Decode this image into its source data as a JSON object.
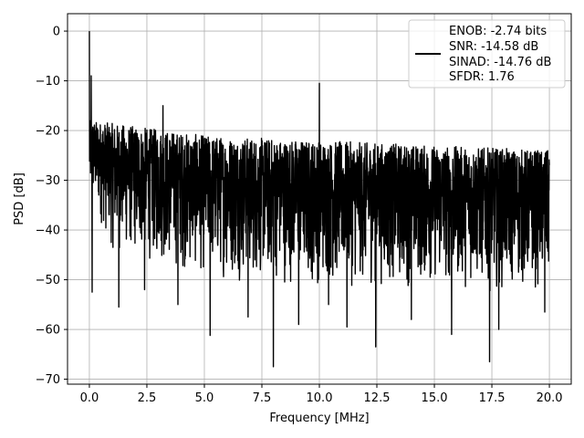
{
  "chart_data": {
    "type": "line",
    "xlabel": "Frequency [MHz]",
    "ylabel": "PSD [dB]",
    "xlim": [
      -0.95,
      20.95
    ],
    "ylim": [
      -71,
      3.5
    ],
    "xticks": [
      0.0,
      2.5,
      5.0,
      7.5,
      10.0,
      12.5,
      15.0,
      17.5,
      20.0
    ],
    "xtick_labels": [
      "0.0",
      "2.5",
      "5.0",
      "7.5",
      "10.0",
      "12.5",
      "15.0",
      "17.5",
      "20.0"
    ],
    "yticks": [
      0,
      -10,
      -20,
      -30,
      -40,
      -50,
      -60,
      -70
    ],
    "ytick_labels": [
      "0",
      "−10",
      "−20",
      "−30",
      "−40",
      "−50",
      "−60",
      "−70"
    ],
    "grid": true,
    "legend_position": "top-right",
    "legend": {
      "lines": [
        "ENOB: -2.74 bits",
        "SNR: -14.58 dB",
        "SINAD: -14.76 dB",
        "SFDR: 1.76"
      ]
    },
    "series": [
      {
        "color": "#000000",
        "x_range": [
          0,
          20
        ],
        "peaks": [
          {
            "x": 0.0,
            "y": 0.0
          },
          {
            "x": 0.08,
            "y": -9
          },
          {
            "x": 3.2,
            "y": -15
          },
          {
            "x": 10.0,
            "y": -10.5
          }
        ],
        "upper_envelope": [
          [
            0.1,
            -18
          ],
          [
            5,
            -21
          ],
          [
            10,
            -22
          ],
          [
            15,
            -23
          ],
          [
            20,
            -24
          ]
        ],
        "lower_envelope": [
          [
            0.1,
            -35
          ],
          [
            1,
            -45
          ],
          [
            5,
            -50
          ],
          [
            10,
            -52
          ],
          [
            15,
            -52
          ],
          [
            20,
            -53
          ]
        ],
        "dips": [
          {
            "x": 0.12,
            "y": -52.5
          },
          {
            "x": 1.28,
            "y": -55.5
          },
          {
            "x": 2.4,
            "y": -52
          },
          {
            "x": 3.85,
            "y": -55
          },
          {
            "x": 5.25,
            "y": -61.2
          },
          {
            "x": 6.9,
            "y": -57.5
          },
          {
            "x": 8.0,
            "y": -67.5
          },
          {
            "x": 9.1,
            "y": -59
          },
          {
            "x": 10.4,
            "y": -55
          },
          {
            "x": 11.2,
            "y": -59.5
          },
          {
            "x": 12.45,
            "y": -63.5
          },
          {
            "x": 14.0,
            "y": -58
          },
          {
            "x": 15.75,
            "y": -61
          },
          {
            "x": 17.4,
            "y": -66.5
          },
          {
            "x": 17.8,
            "y": -60
          },
          {
            "x": 19.8,
            "y": -56.5
          }
        ]
      }
    ]
  }
}
